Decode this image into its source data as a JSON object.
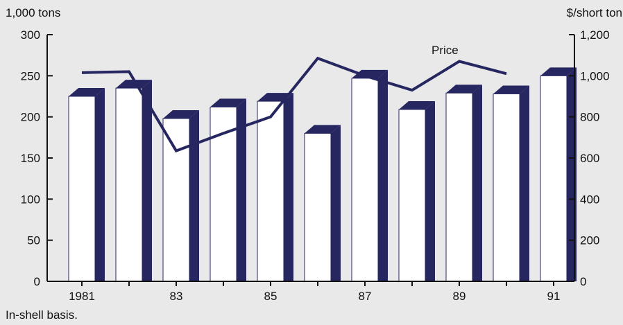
{
  "chart_data": {
    "type": "bar",
    "title": "",
    "left_axis_label": "1,000 tons",
    "right_axis_label": "$/short ton",
    "note": "In-shell basis.",
    "x_tick_labels": [
      "1981",
      "83",
      "85",
      "87",
      "89",
      "91"
    ],
    "years": [
      1981,
      1982,
      1983,
      1984,
      1985,
      1986,
      1987,
      1988,
      1989,
      1990,
      1991
    ],
    "series": [
      {
        "name": "",
        "axis": "left",
        "type": "bar",
        "values": [
          225,
          235,
          198,
          212,
          219,
          180,
          247,
          209,
          229,
          228,
          250
        ]
      },
      {
        "name": "Price",
        "axis": "right",
        "type": "line",
        "values": [
          1015,
          1020,
          635,
          720,
          800,
          1085,
          1000,
          930,
          1070,
          1010
        ]
      }
    ],
    "left_ylim": [
      0,
      300
    ],
    "left_yticks": [
      0,
      50,
      100,
      150,
      200,
      250,
      300
    ],
    "right_ylim": [
      0,
      1200
    ],
    "right_yticks": [
      0,
      200,
      400,
      600,
      800,
      1000,
      1200
    ],
    "right_ytick_labels": [
      "0",
      "200",
      "400",
      "600",
      "800",
      "1,000",
      "1,200"
    ],
    "grid": false,
    "colors": {
      "bar_front": "#ffffff",
      "bar_side": "#262660",
      "line": "#262660",
      "axis": "#111111",
      "background": "#e9e9e9"
    }
  }
}
